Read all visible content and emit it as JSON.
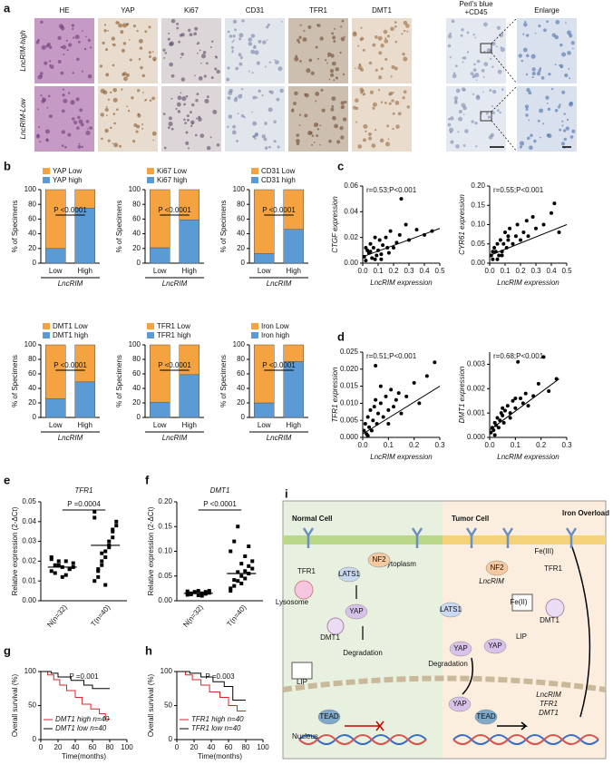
{
  "panel_labels": [
    "a",
    "b",
    "c",
    "d",
    "e",
    "f",
    "g",
    "h",
    "i"
  ],
  "ihc": {
    "columns": [
      "HE",
      "YAP",
      "Ki67",
      "CD31",
      "TFR1",
      "DMT1",
      [
        "Perl's blue",
        "+CD45"
      ],
      "Enlarge"
    ],
    "rows": [
      "LncRIM-high",
      "LncRIM-Low"
    ]
  },
  "chart_data": [
    {
      "type": "stacked_bar",
      "categories": [
        "Low",
        "High"
      ],
      "xlabel": "LncRIM",
      "ylabel": "% of Specimens",
      "ylim": [
        0,
        100
      ],
      "yticks": [
        0,
        20,
        40,
        60,
        80,
        100
      ],
      "annotation": "P <0.0001",
      "series": [
        {
          "name": "YAP high",
          "color": "#5b9bd5",
          "values": [
            20,
            75
          ]
        },
        {
          "name": "YAP Low",
          "color": "#f4a340",
          "values": [
            80,
            25
          ]
        }
      ]
    },
    {
      "type": "stacked_bar",
      "categories": [
        "Low",
        "High"
      ],
      "xlabel": "LncRIM",
      "ylabel": "% of Specimens",
      "ylim": [
        0,
        100
      ],
      "yticks": [
        0,
        20,
        40,
        60,
        80,
        100
      ],
      "annotation": "P <0.0001",
      "series": [
        {
          "name": "Ki67 high",
          "color": "#5b9bd5",
          "values": [
            21,
            59
          ]
        },
        {
          "name": "Ki67 Low",
          "color": "#f4a340",
          "values": [
            79,
            41
          ]
        }
      ]
    },
    {
      "type": "stacked_bar",
      "categories": [
        "Low",
        "High"
      ],
      "xlabel": "LncRIM",
      "ylabel": "% of Specimens",
      "ylim": [
        0,
        100
      ],
      "yticks": [
        0,
        20,
        40,
        60,
        80,
        100
      ],
      "annotation": "P <0.0001",
      "series": [
        {
          "name": "CD31 high",
          "color": "#5b9bd5",
          "values": [
            13,
            46
          ]
        },
        {
          "name": "CD31 Low",
          "color": "#f4a340",
          "values": [
            87,
            54
          ]
        }
      ]
    },
    {
      "type": "stacked_bar",
      "categories": [
        "Low",
        "High"
      ],
      "xlabel": "LncRIM",
      "ylabel": "% of Specimens",
      "ylim": [
        0,
        100
      ],
      "yticks": [
        0,
        20,
        40,
        60,
        80,
        100
      ],
      "annotation": "P <0.0001",
      "series": [
        {
          "name": "DMT1 high",
          "color": "#5b9bd5",
          "values": [
            26,
            49
          ]
        },
        {
          "name": "DMT1 Low",
          "color": "#f4a340",
          "values": [
            74,
            51
          ]
        }
      ]
    },
    {
      "type": "stacked_bar",
      "categories": [
        "Low",
        "High"
      ],
      "xlabel": "LncRIM",
      "ylabel": "% of Specimens",
      "ylim": [
        0,
        100
      ],
      "yticks": [
        0,
        20,
        40,
        60,
        80,
        100
      ],
      "annotation": "P <0.0001",
      "series": [
        {
          "name": "TFR1 high",
          "color": "#5b9bd5",
          "values": [
            21,
            59
          ]
        },
        {
          "name": "TFR1 Low",
          "color": "#f4a340",
          "values": [
            79,
            41
          ]
        }
      ]
    },
    {
      "type": "stacked_bar",
      "categories": [
        "Low",
        "High"
      ],
      "xlabel": "LncRIM",
      "ylabel": "% of Specimens",
      "ylim": [
        0,
        100
      ],
      "yticks": [
        0,
        20,
        40,
        60,
        80,
        100
      ],
      "annotation": "P <0.0001",
      "series": [
        {
          "name": "Iron high",
          "color": "#5b9bd5",
          "values": [
            20,
            77
          ]
        },
        {
          "name": "Iron Low",
          "color": "#f4a340",
          "values": [
            80,
            23
          ]
        }
      ]
    },
    {
      "type": "scatter",
      "xlabel": "LncRIM expression",
      "ylabel": "CTGF expression",
      "annotation": "r=0.53;P<0.001",
      "color": "#000000",
      "xlim": [
        0,
        0.5
      ],
      "xticks": [
        {
          "value": 0,
          "label": "0.0"
        },
        0.1,
        0.2,
        0.3,
        0.4,
        0.5
      ],
      "ylim": [
        0,
        0.06
      ],
      "yticks": [
        {
          "value": 0,
          "label": "0.00"
        },
        0.02,
        0.04,
        0.06
      ],
      "x": [
        0.01,
        0.02,
        0.03,
        0.04,
        0.05,
        0.06,
        0.07,
        0.08,
        0.09,
        0.1,
        0.11,
        0.12,
        0.13,
        0.15,
        0.17,
        0.18,
        0.2,
        0.22,
        0.24,
        0.25,
        0.28,
        0.3,
        0.35,
        0.4,
        0.45,
        0.02,
        0.05,
        0.08,
        0.12,
        0.16
      ],
      "y": [
        0.005,
        0.002,
        0.01,
        0.008,
        0.015,
        0.004,
        0.012,
        0.02,
        0.006,
        0.01,
        0.018,
        0.003,
        0.014,
        0.02,
        0.008,
        0.025,
        0.012,
        0.016,
        0.022,
        0.05,
        0.03,
        0.018,
        0.026,
        0.022,
        0.025,
        0.012,
        0.009,
        0.003,
        0.007,
        0.012
      ],
      "fit_line": {
        "x": [
          0,
          0.5
        ],
        "y": [
          0.005,
          0.027
        ]
      }
    },
    {
      "type": "scatter",
      "xlabel": "LncRIM expression",
      "ylabel": "CYR61 expression",
      "annotation": "r=0.55;P<0.001",
      "color": "#000000",
      "xlim": [
        0,
        0.5
      ],
      "xticks": [
        {
          "value": 0,
          "label": "0.0"
        },
        0.1,
        0.2,
        0.3,
        0.4,
        0.5
      ],
      "ylim": [
        0,
        0.2
      ],
      "yticks": [
        {
          "value": 0,
          "label": "0.00"
        },
        0.05,
        {
          "value": 0.1,
          "label": "0.10"
        },
        0.15,
        {
          "value": 0.2,
          "label": "0.20"
        }
      ],
      "x": [
        0.01,
        0.02,
        0.03,
        0.04,
        0.05,
        0.06,
        0.07,
        0.08,
        0.09,
        0.1,
        0.11,
        0.12,
        0.13,
        0.15,
        0.17,
        0.18,
        0.2,
        0.22,
        0.24,
        0.25,
        0.28,
        0.3,
        0.35,
        0.4,
        0.42,
        0.45,
        0.02,
        0.05,
        0.08,
        0.12
      ],
      "y": [
        0.02,
        0.01,
        0.04,
        0.03,
        0.05,
        0.02,
        0.06,
        0.03,
        0.05,
        0.08,
        0.04,
        0.06,
        0.09,
        0.05,
        0.07,
        0.1,
        0.06,
        0.08,
        0.11,
        0.07,
        0.12,
        0.09,
        0.1,
        0.13,
        0.155,
        0.08,
        0.03,
        0.01,
        0.02,
        0.07
      ],
      "fit_line": {
        "x": [
          0,
          0.5
        ],
        "y": [
          0.02,
          0.1
        ]
      }
    },
    {
      "type": "scatter",
      "xlabel": "LncRIM expression",
      "ylabel": "TFR1 expression",
      "annotation": "r=0.51;P<0.001",
      "color": "#000000",
      "xlim": [
        0,
        0.3
      ],
      "xticks": [
        {
          "value": 0,
          "label": "0.0"
        },
        0.1,
        0.2,
        0.3
      ],
      "ylim": [
        0,
        0.025
      ],
      "yticks": [
        {
          "value": 0,
          "label": "0.000"
        },
        0.005,
        {
          "value": 0.01,
          "label": "0.010"
        },
        0.015,
        {
          "value": 0.02,
          "label": "0.020"
        },
        0.025
      ],
      "x": [
        0.005,
        0.01,
        0.015,
        0.02,
        0.025,
        0.03,
        0.035,
        0.04,
        0.045,
        0.05,
        0.055,
        0.06,
        0.07,
        0.08,
        0.09,
        0.1,
        0.11,
        0.12,
        0.13,
        0.14,
        0.15,
        0.17,
        0.2,
        0.22,
        0.25,
        0.28,
        0.02,
        0.05,
        0.07,
        0.1
      ],
      "y": [
        0.002,
        0.004,
        0.001,
        0.006,
        0.003,
        0.008,
        0.002,
        0.005,
        0.009,
        0.021,
        0.004,
        0.007,
        0.01,
        0.006,
        0.012,
        0.008,
        0.014,
        0.009,
        0.011,
        0.013,
        0.007,
        0.012,
        0.016,
        0.01,
        0.018,
        0.022,
        0.0005,
        0.011,
        0.015,
        0.004
      ],
      "fit_line": {
        "x": [
          0,
          0.3
        ],
        "y": [
          0.001,
          0.015
        ]
      }
    },
    {
      "type": "scatter",
      "xlabel": "LncRIM expression",
      "ylabel": "DMT1 expression",
      "annotation": "r=0.68;P<0.001",
      "color": "#000000",
      "xlim": [
        0,
        0.3
      ],
      "xticks": [
        {
          "value": 0,
          "label": "0.0"
        },
        0.1,
        0.2,
        0.3
      ],
      "ylim": [
        0,
        0.0035
      ],
      "yticks": [
        {
          "value": 0,
          "label": "0.000"
        },
        0.001,
        0.002,
        0.003
      ],
      "x": [
        0.005,
        0.01,
        0.015,
        0.02,
        0.025,
        0.03,
        0.035,
        0.04,
        0.045,
        0.05,
        0.055,
        0.06,
        0.07,
        0.08,
        0.09,
        0.1,
        0.11,
        0.12,
        0.13,
        0.14,
        0.15,
        0.17,
        0.19,
        0.21,
        0.23,
        0.26,
        0.02,
        0.05,
        0.08,
        0.1
      ],
      "y": [
        0.0002,
        0.0004,
        0.0003,
        0.0006,
        0.0005,
        0.0008,
        0.0004,
        0.0007,
        0.001,
        0.0009,
        0.0006,
        0.0011,
        0.0013,
        0.001,
        0.0015,
        0.0012,
        0.0031,
        0.0016,
        0.0014,
        0.0018,
        0.0013,
        0.0017,
        0.0022,
        0.0033,
        0.0019,
        0.0024,
        0.0001,
        0.0012,
        0.0008,
        0.0016
      ],
      "fit_line": {
        "x": [
          0,
          0.27
        ],
        "y": [
          0.0003,
          0.0024
        ]
      }
    },
    {
      "type": "strip",
      "title": "TFR1",
      "categories": [
        "N(n=32)",
        "T(n=40)"
      ],
      "ylabel": "Relative expression (2-ΔCt)",
      "annotation": "P =0.0004",
      "color": "#000000",
      "ylim": [
        0,
        0.05
      ],
      "yticks": [
        {
          "value": 0,
          "label": "0.00"
        },
        0.01,
        0.02,
        0.03,
        0.04,
        0.05
      ],
      "values": [
        [
          0.015,
          0.018,
          0.02,
          0.017,
          0.013,
          0.016,
          0.019,
          0.021,
          0.014,
          0.018,
          0.012,
          0.02,
          0.016,
          0.017,
          0.022
        ],
        [
          0.01,
          0.015,
          0.02,
          0.025,
          0.03,
          0.035,
          0.04,
          0.045,
          0.012,
          0.018,
          0.022,
          0.028,
          0.032,
          0.038,
          0.042,
          0.016,
          0.024,
          0.008,
          0.027,
          0.036
        ]
      ],
      "means": [
        0.017,
        0.028
      ]
    },
    {
      "type": "strip",
      "title": "DMT1",
      "categories": [
        "N(n=32)",
        "T(n=40)"
      ],
      "ylabel": "Relative expression (2-ΔCt)",
      "annotation": "P <0.0001",
      "color": "#000000",
      "ylim": [
        0,
        0.2
      ],
      "yticks": [
        {
          "value": 0,
          "label": "0.00"
        },
        0.05,
        {
          "value": 0.1,
          "label": "0.10"
        },
        0.15,
        {
          "value": 0.2,
          "label": "0.20"
        }
      ],
      "values": [
        [
          0.012,
          0.015,
          0.018,
          0.02,
          0.01,
          0.014,
          0.016,
          0.019,
          0.013,
          0.017,
          0.011,
          0.015,
          0.018,
          0.02,
          0.016
        ],
        [
          0.02,
          0.03,
          0.04,
          0.05,
          0.06,
          0.07,
          0.08,
          0.1,
          0.12,
          0.15,
          0.035,
          0.045,
          0.055,
          0.065,
          0.025,
          0.042,
          0.058,
          0.075,
          0.09,
          0.11
        ]
      ],
      "means": [
        0.015,
        0.055
      ]
    },
    {
      "type": "km",
      "xlabel": "Time(months)",
      "ylabel": "Overall survival (%)",
      "annotation": "P =0.001",
      "xlim": [
        0,
        100
      ],
      "xticks": [
        0,
        20,
        40,
        60,
        80,
        100
      ],
      "ylim": [
        0,
        100
      ],
      "yticks": [
        0,
        50,
        100
      ],
      "legend": "lower left",
      "series": [
        {
          "name": "DMT1 high n=40",
          "color": "#d62728",
          "x": [
            0,
            8,
            8,
            15,
            15,
            22,
            22,
            30,
            30,
            40,
            40,
            48,
            48,
            58,
            58,
            68,
            68,
            75,
            75,
            80
          ],
          "values": [
            100,
            100,
            95,
            95,
            88,
            88,
            80,
            80,
            72,
            72,
            62,
            62,
            52,
            52,
            45,
            45,
            38,
            38,
            30,
            30
          ]
        },
        {
          "name": "DMT1 low n=40",
          "color": "#000000",
          "x": [
            0,
            12,
            12,
            20,
            20,
            35,
            35,
            50,
            50,
            60,
            60,
            80
          ],
          "values": [
            100,
            100,
            97.5,
            97.5,
            92,
            92,
            87,
            87,
            80,
            80,
            75,
            75
          ]
        }
      ]
    },
    {
      "type": "km",
      "xlabel": "Time(months)",
      "ylabel": "Overall survival (%)",
      "annotation": "P =0.003",
      "xlim": [
        0,
        100
      ],
      "xticks": [
        0,
        20,
        40,
        60,
        80,
        100
      ],
      "ylim": [
        0,
        100
      ],
      "yticks": [
        0,
        50,
        100
      ],
      "legend": "lower left",
      "series": [
        {
          "name": "TFR1 high n=40",
          "color": "#d62728",
          "x": [
            0,
            10,
            10,
            18,
            18,
            28,
            28,
            38,
            38,
            50,
            50,
            60,
            60,
            70,
            70,
            80
          ],
          "values": [
            100,
            100,
            95,
            95,
            88,
            88,
            80,
            80,
            70,
            70,
            62,
            62,
            50,
            50,
            42,
            42
          ]
        },
        {
          "name": "TFR1 low n=40",
          "color": "#000000",
          "x": [
            0,
            15,
            15,
            28,
            28,
            42,
            42,
            55,
            55,
            65,
            65,
            80
          ],
          "values": [
            100,
            100,
            97.5,
            97.5,
            92,
            92,
            85,
            85,
            78,
            78,
            58,
            58
          ]
        }
      ]
    }
  ],
  "diagram": {
    "labels": [
      "Normal Cell",
      "Tumor Cell",
      "Iron Overload",
      "Cytoplasm",
      "Nucleus",
      "TFR1",
      "NF2",
      "LATS1",
      "YAP",
      "Lysosome",
      "DMT1",
      "Degradation",
      "LIP",
      "TEAD",
      "NF2",
      "LncRIM",
      "TFR1",
      "DMT1",
      "LATS1",
      "LIP",
      "YAP",
      "YAP",
      "Degradation",
      "YAP",
      "TEAD",
      "LncRIM",
      "TFR1",
      "DMT1",
      "Fe(II)",
      "Fe(III)"
    ]
  }
}
